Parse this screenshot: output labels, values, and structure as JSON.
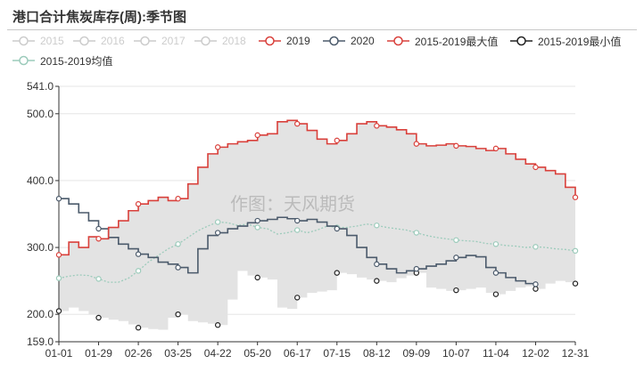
{
  "title": "港口合计焦炭库存(周):季节图",
  "watermark": "作图：天风期货",
  "colors": {
    "s2019": "#d9403b",
    "s2020": "#4b5a6b",
    "max": "#d9403b",
    "min": "#222222",
    "avg": "#9ccbbb",
    "inactive": "#cccccc",
    "band": "#e3e3e3",
    "axis": "#333333",
    "grid": "#e5e5e5"
  },
  "legend": [
    {
      "label": "2015",
      "active": false,
      "key": "inactive"
    },
    {
      "label": "2016",
      "active": false,
      "key": "inactive"
    },
    {
      "label": "2017",
      "active": false,
      "key": "inactive"
    },
    {
      "label": "2018",
      "active": false,
      "key": "inactive"
    },
    {
      "label": "2019",
      "active": true,
      "key": "s2019"
    },
    {
      "label": "2020",
      "active": true,
      "key": "s2020"
    },
    {
      "label": "2015-2019最大值",
      "active": true,
      "key": "max"
    },
    {
      "label": "2015-2019最小值",
      "active": true,
      "key": "min"
    },
    {
      "label": "2015-2019均值",
      "active": true,
      "key": "avg"
    }
  ],
  "chart_data": {
    "type": "line",
    "x_ticks": [
      "01-01",
      "01-29",
      "02-26",
      "03-25",
      "04-22",
      "05-20",
      "06-17",
      "07-15",
      "08-12",
      "09-09",
      "10-07",
      "11-04",
      "12-02",
      "12-31"
    ],
    "y_ticks": [
      159.0,
      200.0,
      300.0,
      400.0,
      500.0,
      541.0
    ],
    "ylim": [
      159,
      541
    ],
    "grid": true,
    "legend_position": "top",
    "series": [
      {
        "name": "2019",
        "key": "s2019",
        "step": true,
        "values": [
          289,
          308,
          300,
          316,
          313,
          330,
          340,
          355,
          365,
          370,
          375,
          370,
          373,
          395,
          420,
          440,
          450,
          455,
          458,
          460,
          468,
          470,
          488,
          490,
          485,
          475,
          462,
          455,
          460,
          470,
          485,
          488,
          482,
          480,
          476,
          470,
          455,
          452,
          453,
          455,
          452,
          451,
          448,
          445,
          448,
          440,
          432,
          425,
          420,
          415,
          410,
          390,
          375
        ],
        "markers": [
          0,
          4,
          8,
          12,
          16,
          20,
          24,
          28,
          32,
          36,
          40,
          44,
          48,
          52
        ]
      },
      {
        "name": "2020",
        "key": "s2020",
        "step": true,
        "values": [
          373,
          365,
          352,
          340,
          328,
          315,
          305,
          298,
          290,
          285,
          278,
          275,
          270,
          262,
          298,
          318,
          322,
          328,
          332,
          337,
          340,
          342,
          345,
          343,
          340,
          342,
          338,
          332,
          328,
          318,
          300,
          285,
          275,
          268,
          262,
          265,
          268,
          272,
          275,
          280,
          285,
          288,
          286,
          270,
          262,
          255,
          250,
          246,
          245
        ],
        "markers": [
          0,
          4,
          8,
          12,
          16,
          20,
          24,
          28,
          32,
          36,
          40,
          44,
          48
        ]
      },
      {
        "name": "2015-2019最大值",
        "key": "max",
        "step": true,
        "values": [
          289,
          308,
          300,
          316,
          313,
          330,
          340,
          355,
          365,
          370,
          375,
          370,
          373,
          395,
          420,
          440,
          450,
          455,
          458,
          460,
          468,
          470,
          488,
          490,
          485,
          475,
          462,
          455,
          460,
          470,
          485,
          488,
          482,
          480,
          476,
          470,
          455,
          452,
          453,
          455,
          452,
          451,
          448,
          445,
          448,
          440,
          432,
          425,
          420,
          415,
          410,
          390,
          375
        ],
        "markers": []
      },
      {
        "name": "2015-2019最小值",
        "key": "min",
        "step": true,
        "values": [
          205,
          210,
          205,
          200,
          195,
          192,
          190,
          185,
          180,
          178,
          177,
          195,
          200,
          190,
          188,
          186,
          184,
          222,
          265,
          258,
          255,
          252,
          210,
          208,
          225,
          232,
          234,
          236,
          262,
          260,
          255,
          252,
          250,
          248,
          254,
          258,
          262,
          240,
          238,
          235,
          236,
          238,
          240,
          232,
          230,
          235,
          240,
          242,
          238,
          246,
          250,
          248,
          246
        ],
        "markers": [
          0,
          4,
          8,
          12,
          16,
          20,
          24,
          28,
          32,
          36,
          40,
          44,
          48,
          52
        ]
      },
      {
        "name": "2015-2019均值",
        "key": "avg",
        "step": false,
        "values": [
          254,
          257,
          259,
          258,
          253,
          248,
          248,
          254,
          265,
          278,
          288,
          298,
          305,
          315,
          325,
          332,
          338,
          337,
          333,
          335,
          330,
          328,
          320,
          322,
          326,
          322,
          326,
          332,
          330,
          330,
          332,
          335,
          333,
          330,
          328,
          326,
          322,
          318,
          315,
          313,
          311,
          310,
          309,
          306,
          305,
          303,
          302,
          300,
          301,
          300,
          298,
          297,
          295
        ],
        "markers": [
          0,
          4,
          8,
          12,
          16,
          20,
          24,
          28,
          32,
          36,
          40,
          44,
          48,
          52
        ]
      }
    ]
  }
}
